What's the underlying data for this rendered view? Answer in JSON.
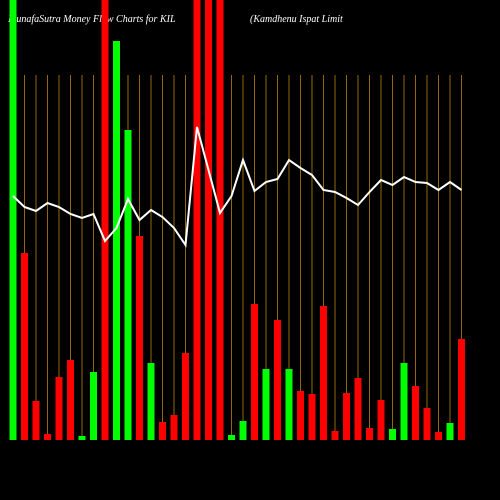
{
  "chart_data": {
    "type": "bar",
    "title": "MunafaSutra  Money Flow  Charts for KIL",
    "subtitle": "(Kamdhenu  Ispat Limit",
    "categories": [
      null,
      null,
      null,
      null,
      null,
      null,
      null,
      null,
      null,
      null,
      null,
      null,
      null,
      null,
      null,
      null,
      null,
      null,
      null,
      null,
      null,
      null,
      null,
      null,
      null,
      null,
      null,
      null,
      null,
      null,
      null,
      null,
      null,
      null,
      null,
      null,
      null,
      null,
      null,
      null
    ],
    "values": [
      440,
      187,
      39,
      6,
      63,
      80,
      4,
      68,
      440,
      399,
      310,
      204,
      77,
      18,
      25,
      87,
      440,
      440,
      440,
      5,
      19,
      136,
      71,
      120,
      71,
      49,
      46,
      134,
      9,
      47,
      62,
      12,
      40,
      11,
      77,
      54,
      32,
      8,
      17,
      101
    ],
    "colors": [
      "#00ff00",
      "#ff0000",
      "#ff0000",
      "#ff0000",
      "#ff0000",
      "#ff0000",
      "#00ff00",
      "#00ff00",
      "#ff0000",
      "#00ff00",
      "#00ff00",
      "#ff0000",
      "#00ff00",
      "#ff0000",
      "#ff0000",
      "#ff0000",
      "#ff0000",
      "#ff0000",
      "#ff0000",
      "#00ff00",
      "#00ff00",
      "#ff0000",
      "#00ff00",
      "#ff0000",
      "#00ff00",
      "#ff0000",
      "#ff0000",
      "#ff0000",
      "#ff0000",
      "#ff0000",
      "#ff0000",
      "#ff0000",
      "#ff0000",
      "#00ff00",
      "#00ff00",
      "#ff0000",
      "#ff0000",
      "#ff0000",
      "#00ff00",
      "#ff0000"
    ],
    "line": {
      "color": "#ffffff",
      "values": [
        244,
        233,
        229,
        237,
        233,
        226,
        222,
        226,
        199,
        212,
        241,
        220,
        230,
        223,
        212,
        195,
        313,
        270,
        227,
        244,
        280,
        249,
        258,
        261,
        280,
        272,
        265,
        250,
        248,
        242,
        235,
        248,
        260,
        255,
        263,
        258,
        257,
        250,
        258,
        250
      ]
    },
    "ylim": [
      0,
      440
    ],
    "grid_color": "#b8860b"
  }
}
